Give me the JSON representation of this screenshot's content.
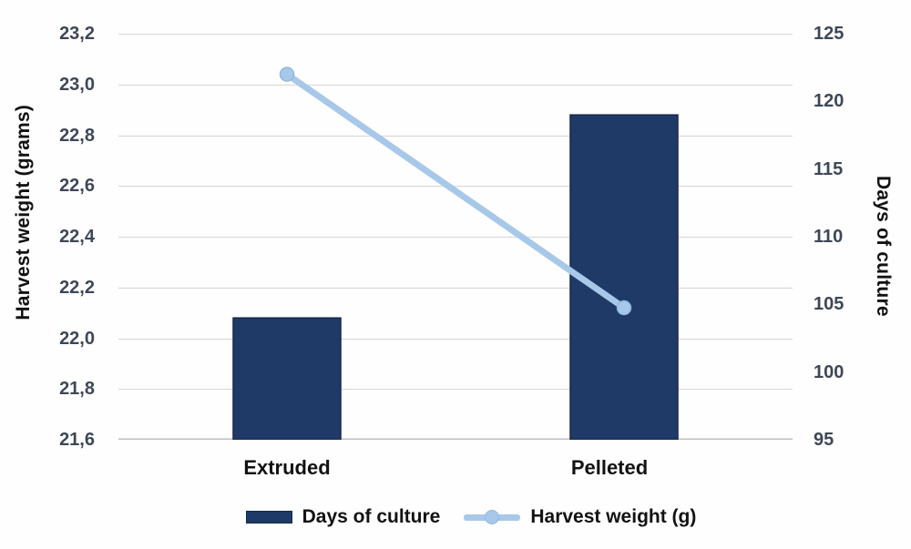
{
  "chart_data": {
    "type": "bar",
    "subtype": "combo-bar-line-dual-axis",
    "title": "",
    "categories": [
      "Extruded",
      "Pelleted"
    ],
    "series": [
      {
        "name": "Days of culture",
        "type": "bar",
        "axis": "right",
        "values": [
          104,
          119
        ],
        "color": "#1f3a66",
        "border_color": "#16294a"
      },
      {
        "name": "Harvest weight (g)",
        "type": "line",
        "axis": "left",
        "values": [
          23.04,
          22.12
        ],
        "color": "#a7c8e9",
        "marker_border": "#90b8de"
      }
    ],
    "left_axis": {
      "label": "Harvest weight (grams)",
      "min": 21.6,
      "max": 23.2,
      "step": 0.2,
      "tick_labels": [
        "23,2",
        "23,0",
        "22,8",
        "22,6",
        "22,4",
        "22,2",
        "22,0",
        "21,8",
        "21,6"
      ]
    },
    "right_axis": {
      "label": "Days of culture",
      "min": 95,
      "max": 125,
      "step": 5,
      "tick_labels": [
        "125",
        "120",
        "115",
        "110",
        "105",
        "100",
        "95"
      ]
    },
    "legend": [
      {
        "label": "Days of culture",
        "swatch": "bar"
      },
      {
        "label": "Harvest weight (g)",
        "swatch": "line"
      }
    ],
    "grid": true,
    "legend_position": "bottom",
    "colors": {
      "gridline": "#d9d9d9",
      "baseline": "#bfbfbf",
      "tick_text": "#3e4757",
      "text": "#121212",
      "background": "#fefefe"
    }
  }
}
